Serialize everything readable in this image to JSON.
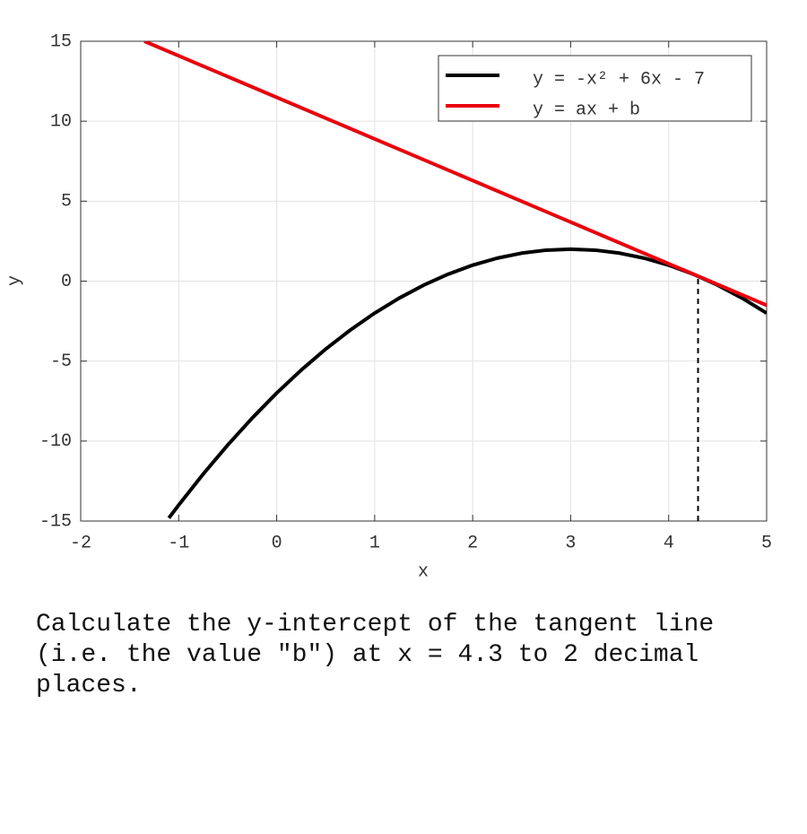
{
  "chart_data": {
    "type": "line",
    "xlabel": "x",
    "ylabel": "y",
    "xlim": [
      -2,
      5
    ],
    "xticks": [
      -2,
      -1,
      0,
      1,
      2,
      3,
      4,
      5
    ],
    "ylim": [
      -15,
      15
    ],
    "yticks": [
      -15,
      -10,
      -5,
      0,
      5,
      10,
      15
    ],
    "grid": true,
    "legend": "upper right",
    "series": [
      {
        "name": "y = -x² + 6x - 7",
        "color": "#000000",
        "x": [
          -1.1,
          -1,
          -0.75,
          -0.5,
          -0.25,
          0,
          0.25,
          0.5,
          0.75,
          1,
          1.25,
          1.5,
          1.75,
          2,
          2.25,
          2.5,
          2.75,
          3,
          3.25,
          3.5,
          3.75,
          4,
          4.25,
          4.5,
          4.75,
          5
        ],
        "values": [
          -14.81,
          -14,
          -12.0625,
          -10.25,
          -8.5625,
          -7,
          -5.5625,
          -4.25,
          -3.0625,
          -2,
          -1.0625,
          -0.25,
          0.4375,
          1,
          1.4375,
          1.75,
          1.9375,
          2,
          1.9375,
          1.75,
          1.4375,
          1,
          0.4375,
          -0.25,
          -1.0625,
          -2
        ]
      },
      {
        "name": "y = ax + b",
        "color": "#e8000b",
        "x": [
          -1.35,
          5
        ],
        "values": [
          15.0,
          -1.51
        ]
      }
    ],
    "marker": {
      "x": 4.3,
      "y": 0.31
    }
  },
  "question": "Calculate the y-intercept of the tangent line (i.e. the value \"b\") at x = 4.3 to 2 decimal places."
}
